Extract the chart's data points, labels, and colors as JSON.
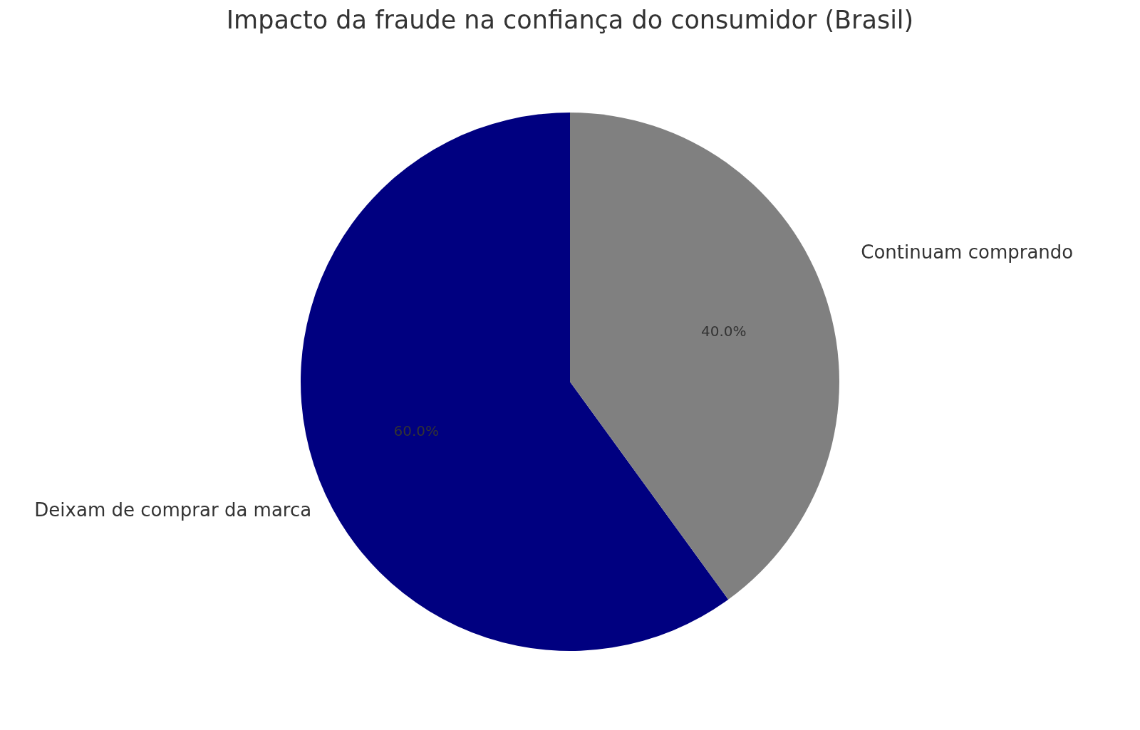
{
  "chart_data": {
    "type": "pie",
    "title": "Impacto da fraude na confiança do consumidor (Brasil)",
    "categories": [
      "Deixam de comprar da marca",
      "Continuam comprando"
    ],
    "values": [
      60,
      40
    ],
    "colors": [
      "#000080",
      "#808080"
    ],
    "value_labels": [
      "60.0%",
      "40.0%"
    ]
  }
}
